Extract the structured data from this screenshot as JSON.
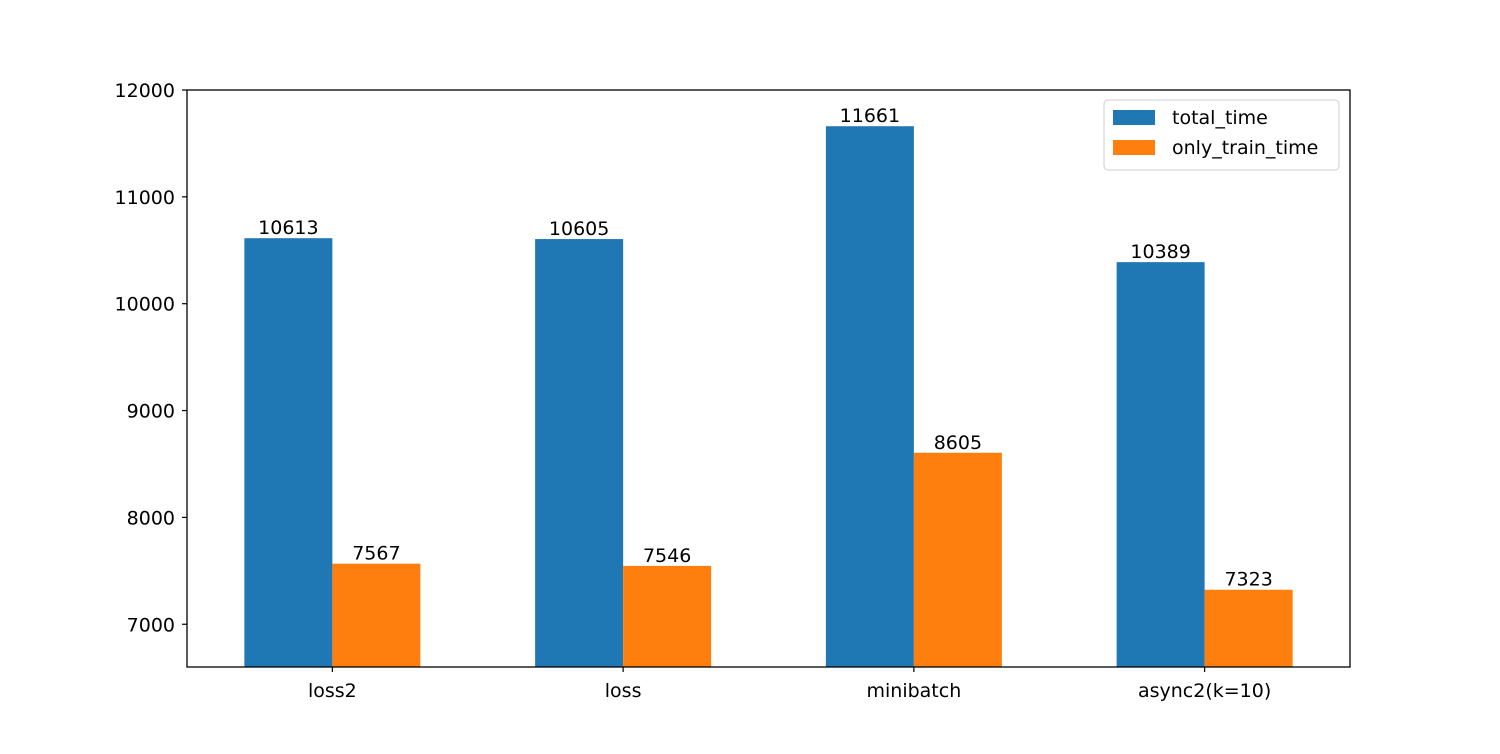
{
  "chart_data": {
    "type": "bar",
    "title": "",
    "xlabel": "",
    "ylabel": "",
    "categories": [
      "loss2",
      "loss",
      "minibatch",
      "async2(k=10)"
    ],
    "series": [
      {
        "name": "total_time",
        "color": "#1f77b4",
        "values": [
          10613,
          10605,
          11661,
          10389
        ]
      },
      {
        "name": "only_train_time",
        "color": "#ff7f0e",
        "values": [
          7567,
          7546,
          8605,
          7323
        ]
      }
    ],
    "ylim": [
      6600,
      12000
    ],
    "yticks": [
      7000,
      8000,
      9000,
      10000,
      11000,
      12000
    ],
    "data_labels": true,
    "grid": false,
    "legend_position": "top-right"
  }
}
